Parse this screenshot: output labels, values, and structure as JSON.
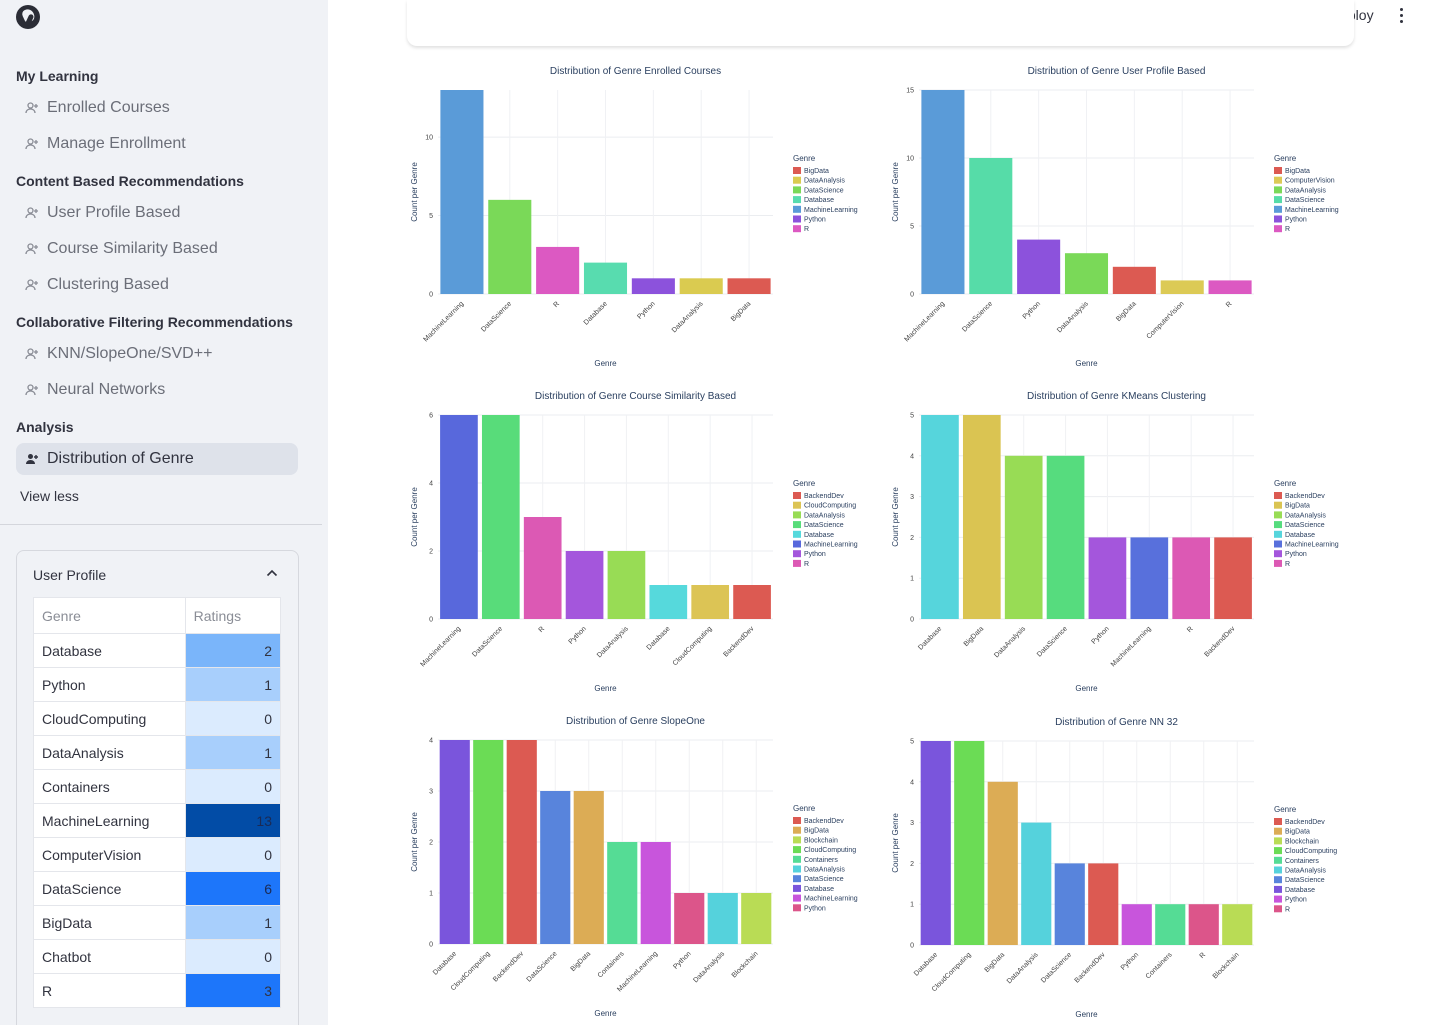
{
  "sidebar": {
    "sections": [
      {
        "title": "My Learning",
        "items": [
          "Enrolled Courses",
          "Manage Enrollment"
        ]
      },
      {
        "title": "Content Based Recommendations",
        "items": [
          "User Profile Based",
          "Course Similarity Based",
          "Clustering Based"
        ]
      },
      {
        "title": "Collaborative Filtering Recommendations",
        "items": [
          "KNN/SlopeOne/SVD++",
          "Neural Networks"
        ]
      },
      {
        "title": "Analysis",
        "items": [
          "Distribution of Genre"
        ]
      }
    ],
    "active_item": "Distribution of Genre",
    "view_less": "View less"
  },
  "user_profile": {
    "title": "User Profile",
    "headers": [
      "Genre",
      "Ratings"
    ],
    "rows": [
      {
        "genre": "Database",
        "rating": "2"
      },
      {
        "genre": "Python",
        "rating": "1"
      },
      {
        "genre": "CloudComputing",
        "rating": "0"
      },
      {
        "genre": "DataAnalysis",
        "rating": "1"
      },
      {
        "genre": "Containers",
        "rating": "0"
      },
      {
        "genre": "MachineLearning",
        "rating": "13"
      },
      {
        "genre": "ComputerVision",
        "rating": "0"
      },
      {
        "genre": "DataScience",
        "rating": "6"
      },
      {
        "genre": "BigData",
        "rating": "1"
      },
      {
        "genre": "Chatbot",
        "rating": "0"
      },
      {
        "genre": "R",
        "rating": "3"
      }
    ]
  },
  "header": {
    "deploy": "Deploy"
  },
  "colors": {
    "BigData": "#dc5a52",
    "DataAnalysis": "#d8c94f",
    "DataScience": "#79d955",
    "Database": "#56ddb0",
    "MachineLearning": "#589cd9",
    "Python": "#8a51dc",
    "R": "#d657c4",
    "ComputerVision": "#dcc955",
    "BackendDev": "#dd5a52",
    "CloudComputing": "#dbc155",
    "Blockchain": "#b9db55",
    "Containers": "#55dd95"
  },
  "chart_data": [
    {
      "type": "bar",
      "title": "Distribution of Genre Enrolled Courses",
      "xlabel": "Genre",
      "ylabel": "Count per Genre",
      "categories": [
        "MachineLearning",
        "DataScience",
        "R",
        "Database",
        "Python",
        "DataAnalysis",
        "BigData"
      ],
      "values": [
        13,
        6,
        3,
        2,
        1,
        1,
        1
      ],
      "colors": [
        "#5a9bd8",
        "#7ad958",
        "#dc59c2",
        "#58dcaf",
        "#8c52dc",
        "#dacb50",
        "#dc5a52"
      ],
      "yticks": [
        0,
        5,
        10
      ],
      "ymax": 13,
      "legend_title": "Genre",
      "legend": [
        {
          "name": "BigData",
          "color": "#dc5a52"
        },
        {
          "name": "DataAnalysis",
          "color": "#dacb50"
        },
        {
          "name": "DataScience",
          "color": "#7ad958"
        },
        {
          "name": "Database",
          "color": "#58dcaf"
        },
        {
          "name": "MachineLearning",
          "color": "#5a9bd8"
        },
        {
          "name": "Python",
          "color": "#8c52dc"
        },
        {
          "name": "R",
          "color": "#dc59c2"
        }
      ]
    },
    {
      "type": "bar",
      "title": "Distribution of Genre User Profile Based",
      "xlabel": "Genre",
      "ylabel": "Count per Genre",
      "categories": [
        "MachineLearning",
        "DataScience",
        "Python",
        "DataAnalysis",
        "BigData",
        "ComputerVision",
        "R"
      ],
      "values": [
        15,
        10,
        4,
        3,
        2,
        1,
        1
      ],
      "colors": [
        "#5a9bd8",
        "#56dca8",
        "#8c52dc",
        "#7ad958",
        "#dc5a52",
        "#dcca55",
        "#dc59c2"
      ],
      "yticks": [
        0,
        5,
        10,
        15
      ],
      "ymax": 15,
      "legend_title": "Genre",
      "legend": [
        {
          "name": "BigData",
          "color": "#dc5a52"
        },
        {
          "name": "ComputerVision",
          "color": "#dcca55"
        },
        {
          "name": "DataAnalysis",
          "color": "#7ad958"
        },
        {
          "name": "DataScience",
          "color": "#56dca8"
        },
        {
          "name": "MachineLearning",
          "color": "#5a9bd8"
        },
        {
          "name": "Python",
          "color": "#8c52dc"
        },
        {
          "name": "R",
          "color": "#dc59c2"
        }
      ]
    },
    {
      "type": "bar",
      "title": "Distribution of Genre Course Similarity Based",
      "xlabel": "Genre",
      "ylabel": "Count per Genre",
      "categories": [
        "MachineLearning",
        "DataScience",
        "R",
        "Python",
        "DataAnalysis",
        "Database",
        "CloudComputing",
        "BackendDev"
      ],
      "values": [
        6,
        6,
        3,
        2,
        2,
        1,
        1,
        1
      ],
      "colors": [
        "#5868dc",
        "#58dc7a",
        "#dc59b4",
        "#a456dc",
        "#98dc55",
        "#56d9dc",
        "#dcc455",
        "#dc5a52"
      ],
      "yticks": [
        0,
        2,
        4,
        6
      ],
      "ymax": 6,
      "legend_title": "Genre",
      "legend": [
        {
          "name": "BackendDev",
          "color": "#dc5a52"
        },
        {
          "name": "CloudComputing",
          "color": "#dcc455"
        },
        {
          "name": "DataAnalysis",
          "color": "#98dc55"
        },
        {
          "name": "DataScience",
          "color": "#58dc7a"
        },
        {
          "name": "Database",
          "color": "#56d9dc"
        },
        {
          "name": "MachineLearning",
          "color": "#5868dc"
        },
        {
          "name": "Python",
          "color": "#a456dc"
        },
        {
          "name": "R",
          "color": "#dc59b4"
        }
      ]
    },
    {
      "type": "bar",
      "title": "Distribution of Genre KMeans Clustering",
      "xlabel": "Genre",
      "ylabel": "Count per Genre",
      "categories": [
        "Database",
        "BigData",
        "DataAnalysis",
        "DataScience",
        "Python",
        "MachineLearning",
        "R",
        "BackendDev"
      ],
      "values": [
        5,
        5,
        4,
        4,
        2,
        2,
        2,
        2
      ],
      "colors": [
        "#56d5dc",
        "#dac452",
        "#98dc55",
        "#56dc7e",
        "#a456dc",
        "#5870dc",
        "#dc59b4",
        "#dc5a52"
      ],
      "yticks": [
        0,
        1,
        2,
        3,
        4,
        5
      ],
      "ymax": 5,
      "legend_title": "Genre",
      "legend": [
        {
          "name": "BackendDev",
          "color": "#dc5a52"
        },
        {
          "name": "BigData",
          "color": "#dac452"
        },
        {
          "name": "DataAnalysis",
          "color": "#98dc55"
        },
        {
          "name": "DataScience",
          "color": "#56dc7e"
        },
        {
          "name": "Database",
          "color": "#56d5dc"
        },
        {
          "name": "MachineLearning",
          "color": "#5870dc"
        },
        {
          "name": "Python",
          "color": "#a456dc"
        },
        {
          "name": "R",
          "color": "#dc59b4"
        }
      ]
    },
    {
      "type": "bar",
      "title": "Distribution of Genre SlopeOne",
      "xlabel": "Genre",
      "ylabel": "Count per Genre",
      "categories": [
        "Database",
        "CloudComputing",
        "BackendDev",
        "DataScience",
        "BigData",
        "Containers",
        "MachineLearning",
        "Python",
        "DataAnalysis",
        "Blockchain"
      ],
      "values": [
        4,
        4,
        4,
        3,
        3,
        2,
        2,
        1,
        1,
        1
      ],
      "colors": [
        "#7a55dc",
        "#6bdc55",
        "#dc5a52",
        "#5884dc",
        "#dcac55",
        "#55dc95",
        "#c855dc",
        "#dc558a",
        "#55d2dc",
        "#b9dc55"
      ],
      "yticks": [
        0,
        1,
        2,
        3,
        4
      ],
      "ymax": 4,
      "legend_title": "Genre",
      "legend": [
        {
          "name": "BackendDev",
          "color": "#dc5a52"
        },
        {
          "name": "BigData",
          "color": "#dcac55"
        },
        {
          "name": "Blockchain",
          "color": "#b9dc55"
        },
        {
          "name": "CloudComputing",
          "color": "#6bdc55"
        },
        {
          "name": "Containers",
          "color": "#55dc95"
        },
        {
          "name": "DataAnalysis",
          "color": "#55d2dc"
        },
        {
          "name": "DataScience",
          "color": "#5884dc"
        },
        {
          "name": "Database",
          "color": "#7a55dc"
        },
        {
          "name": "MachineLearning",
          "color": "#c855dc"
        },
        {
          "name": "Python",
          "color": "#dc558a"
        }
      ]
    },
    {
      "type": "bar",
      "title": "Distribution of Genre NN 32",
      "xlabel": "Genre",
      "ylabel": "Count per Genre",
      "categories": [
        "Database",
        "CloudComputing",
        "BigData",
        "DataAnalysis",
        "DataScience",
        "BackendDev",
        "Python",
        "Containers",
        "R",
        "Blockchain"
      ],
      "values": [
        5,
        5,
        4,
        3,
        2,
        2,
        1,
        1,
        1,
        1
      ],
      "colors": [
        "#7a55dc",
        "#6bdc55",
        "#dcac55",
        "#55d2dc",
        "#5884dc",
        "#dc5a52",
        "#c855dc",
        "#55dc95",
        "#dc558a",
        "#b9dc55"
      ],
      "yticks": [
        0,
        1,
        2,
        3,
        4,
        5
      ],
      "ymax": 5,
      "legend_title": "Genre",
      "legend": [
        {
          "name": "BackendDev",
          "color": "#dc5a52"
        },
        {
          "name": "BigData",
          "color": "#dcac55"
        },
        {
          "name": "Blockchain",
          "color": "#b9dc55"
        },
        {
          "name": "CloudComputing",
          "color": "#6bdc55"
        },
        {
          "name": "Containers",
          "color": "#55dc95"
        },
        {
          "name": "DataAnalysis",
          "color": "#55d2dc"
        },
        {
          "name": "DataScience",
          "color": "#5884dc"
        },
        {
          "name": "Database",
          "color": "#7a55dc"
        },
        {
          "name": "Python",
          "color": "#c855dc"
        },
        {
          "name": "R",
          "color": "#dc558a"
        }
      ]
    }
  ]
}
